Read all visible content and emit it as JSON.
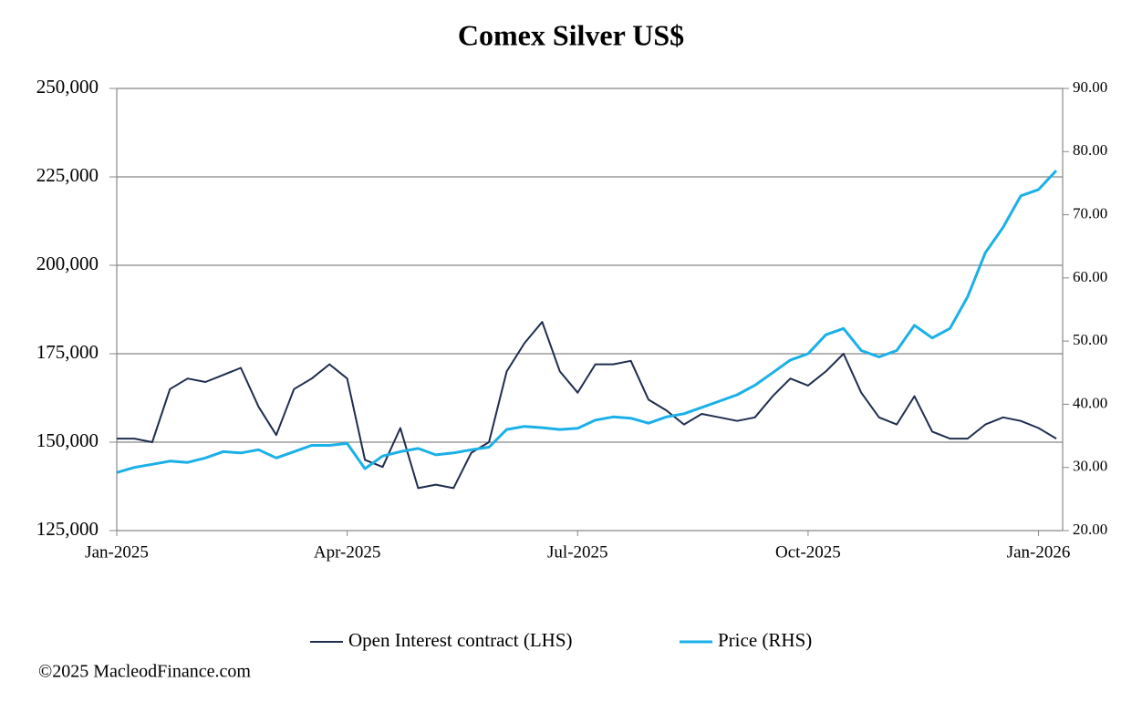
{
  "chart_data": {
    "type": "line",
    "title": "Comex Silver US$",
    "source": "©2025 MacleodFinance.com",
    "categories": [
      "Jan-2025",
      null,
      null,
      null,
      null,
      null,
      null,
      null,
      null,
      null,
      null,
      null,
      null,
      "Apr-2025",
      null,
      null,
      null,
      null,
      null,
      null,
      null,
      null,
      null,
      null,
      null,
      null,
      "Jul-2025",
      null,
      null,
      null,
      null,
      null,
      null,
      null,
      null,
      null,
      null,
      null,
      null,
      "Oct-2025",
      null,
      null,
      null,
      null,
      null,
      null,
      null,
      null,
      null,
      null,
      null,
      null,
      "Jan-2026",
      null
    ],
    "series": [
      {
        "name": "Open Interest contract (LHS)",
        "color": "#1f2d4e",
        "axis": "y",
        "values": [
          151000,
          151000,
          150000,
          165000,
          168000,
          167000,
          169000,
          171000,
          160000,
          152000,
          165000,
          168000,
          172000,
          168000,
          145000,
          143000,
          154000,
          137000,
          138000,
          137000,
          147000,
          150000,
          170000,
          178000,
          184000,
          170000,
          164000,
          172000,
          172000,
          173000,
          162000,
          159000,
          155000,
          158000,
          157000,
          156000,
          157000,
          163000,
          168000,
          166000,
          170000,
          175000,
          164000,
          157000,
          155000,
          163000,
          153000,
          151000,
          151000,
          155000,
          157000,
          156000,
          154000,
          151000
        ]
      },
      {
        "name": "Price (RHS)",
        "color": "#1ab0e8",
        "axis": "y2",
        "values": [
          29.2,
          30.0,
          30.5,
          31.0,
          30.8,
          31.5,
          32.5,
          32.3,
          32.8,
          31.5,
          32.5,
          33.5,
          33.5,
          33.8,
          29.8,
          31.8,
          32.5,
          33.0,
          32.0,
          32.3,
          32.8,
          33.2,
          36.0,
          36.5,
          36.3,
          36.0,
          36.2,
          37.5,
          38.0,
          37.8,
          37.0,
          38.0,
          38.5,
          39.5,
          40.5,
          41.5,
          43.0,
          45.0,
          47.0,
          48.0,
          51.0,
          52.0,
          48.5,
          47.5,
          48.5,
          52.5,
          50.5,
          52.0,
          57.0,
          64.0,
          68.0,
          73.0,
          74.0,
          77.0
        ]
      }
    ],
    "ylim": [
      125000,
      250000
    ],
    "yticks": [
      {
        "value": 125000,
        "label": "125,000"
      },
      {
        "value": 150000,
        "label": "150,000"
      },
      {
        "value": 175000,
        "label": "175,000"
      },
      {
        "value": 200000,
        "label": "200,000"
      },
      {
        "value": 225000,
        "label": "225,000"
      },
      {
        "value": 250000,
        "label": "250,000"
      }
    ],
    "y2lim": [
      20,
      90
    ],
    "y2ticks": [
      {
        "value": 20,
        "label": "20.00"
      },
      {
        "value": 30,
        "label": "30.00"
      },
      {
        "value": 40,
        "label": "40.00"
      },
      {
        "value": 50,
        "label": "50.00"
      },
      {
        "value": 60,
        "label": "60.00"
      },
      {
        "value": 70,
        "label": "70.00"
      },
      {
        "value": 80,
        "label": "80.00"
      },
      {
        "value": 90,
        "label": "90.00"
      }
    ],
    "grid": true,
    "legend": "bottom"
  }
}
